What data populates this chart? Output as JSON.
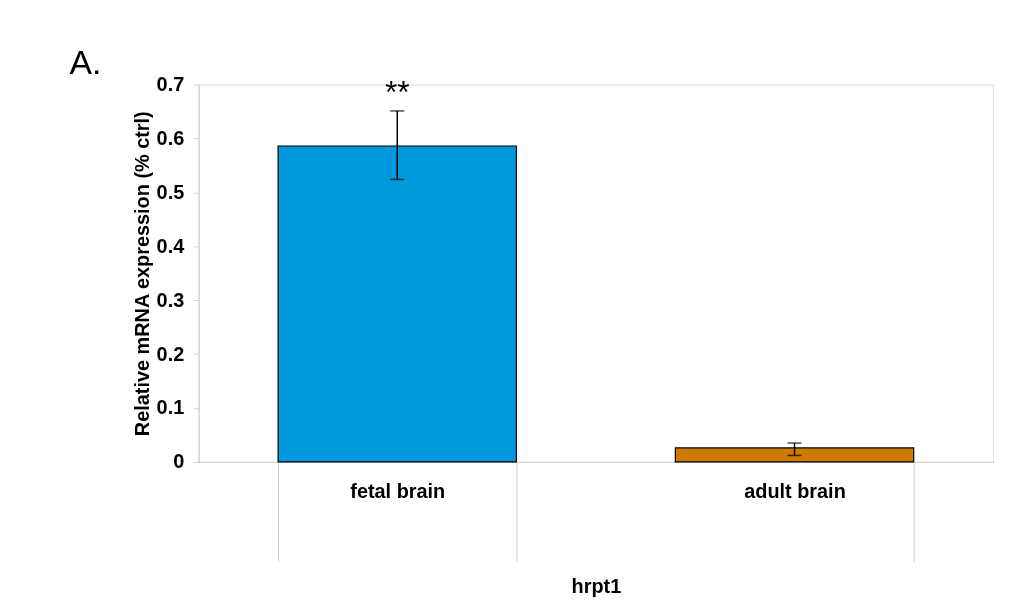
{
  "chart_data": {
    "type": "bar",
    "categories": [
      "fetal brain",
      "adult brain"
    ],
    "values": [
      0.586,
      0.026
    ],
    "colors": [
      "#0099dd",
      "#cc7a00"
    ],
    "errors": [
      [
        0.524,
        0.651
      ],
      [
        0.012,
        0.035
      ]
    ],
    "xlabel": "hrpt1",
    "ylabel": "Relative mRNA expression (% ctrl)",
    "ylim": [
      0,
      0.7
    ],
    "yticks": [
      0,
      0.1,
      0.2,
      0.3,
      0.4,
      0.5,
      0.6,
      0.7
    ],
    "grid": false,
    "annotations": [
      "**",
      "A."
    ]
  }
}
